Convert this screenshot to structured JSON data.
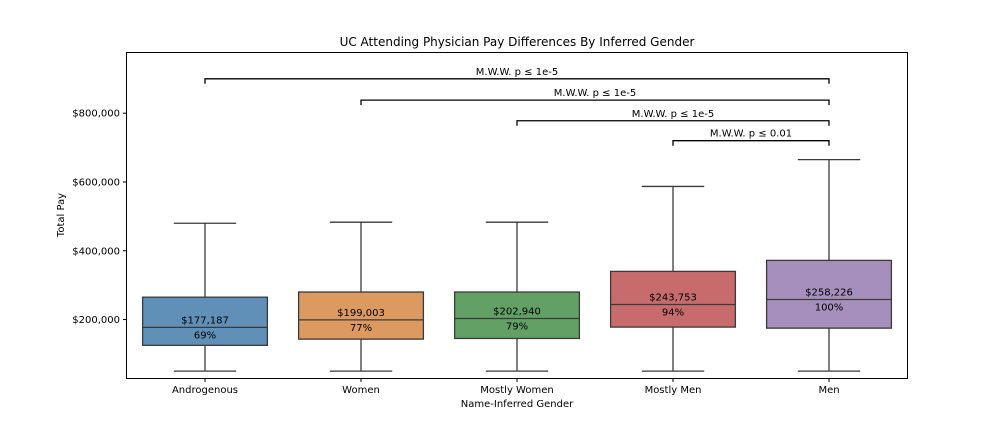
{
  "chart_data": {
    "type": "box",
    "title": "UC Attending Physician Pay Differences By Inferred Gender",
    "xlabel": "Name-Inferred Gender",
    "ylabel": "Total Pay",
    "ylim": [
      30000,
      975000
    ],
    "yticks": [
      200000,
      400000,
      600000,
      800000
    ],
    "ytick_labels": [
      "$200,000",
      "$400,000",
      "$600,000",
      "$800,000"
    ],
    "grid": false,
    "categories": [
      "Androgenous",
      "Women",
      "Mostly Women",
      "Mostly Men",
      "Men"
    ],
    "boxes": [
      {
        "name": "Androgenous",
        "whisker_low": 50000,
        "q1": 125000,
        "median": 177187,
        "q3": 265000,
        "whisker_high": 480000,
        "median_label": "$177,187",
        "pct_label": "69%",
        "color": "#6090b8"
      },
      {
        "name": "Women",
        "whisker_low": 50000,
        "q1": 143000,
        "median": 199003,
        "q3": 280000,
        "whisker_high": 483000,
        "median_label": "$199,003",
        "pct_label": "77%",
        "color": "#dc9a60"
      },
      {
        "name": "Mostly Women",
        "whisker_low": 50000,
        "q1": 145000,
        "median": 202940,
        "q3": 280000,
        "whisker_high": 483000,
        "median_label": "$202,940",
        "pct_label": "79%",
        "color": "#63a065"
      },
      {
        "name": "Mostly Men",
        "whisker_low": 50000,
        "q1": 178000,
        "median": 243753,
        "q3": 340000,
        "whisker_high": 587000,
        "median_label": "$243,753",
        "pct_label": "94%",
        "color": "#c76b6c"
      },
      {
        "name": "Men",
        "whisker_low": 50000,
        "q1": 175000,
        "median": 258226,
        "q3": 372000,
        "whisker_high": 665000,
        "median_label": "$258,226",
        "pct_label": "100%",
        "color": "#a78fbd"
      }
    ],
    "annotations": [
      {
        "from": "Androgenous",
        "to": "Men",
        "text": "M.W.W. p ≤ 1e-5",
        "y": 900000
      },
      {
        "from": "Women",
        "to": "Men",
        "text": "M.W.W. p ≤ 1e-5",
        "y": 838000
      },
      {
        "from": "Mostly Women",
        "to": "Men",
        "text": "M.W.W. p ≤ 1e-5",
        "y": 778000
      },
      {
        "from": "Mostly Men",
        "to": "Men",
        "text": "M.W.W. p ≤ 0.01",
        "y": 720000
      }
    ]
  }
}
